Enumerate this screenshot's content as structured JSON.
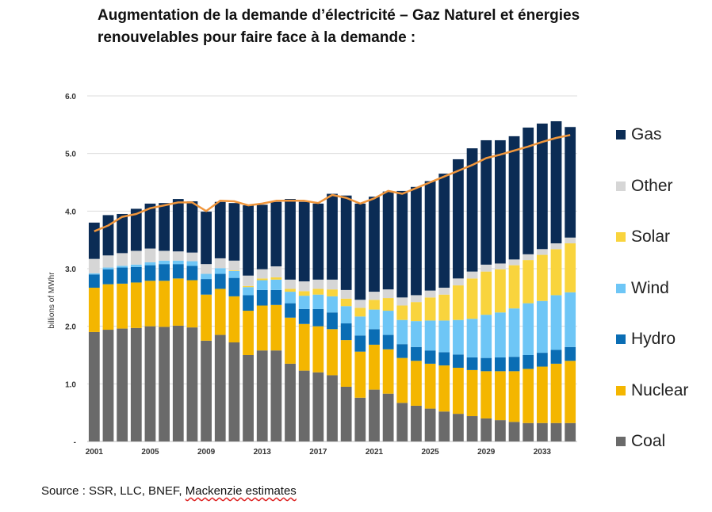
{
  "title_line1": "Augmentation de la demande d’électricité – Gaz Naturel et énergies",
  "title_line2": "renouvelables pour faire face à la demande :",
  "source_prefix": "Source : SSR, LLC, BNEF, ",
  "source_underlined": "Mackenzie estimates",
  "chart_data": {
    "type": "bar",
    "stacked": true,
    "ylabel": "billions of MWhr",
    "ylim": [
      0,
      6
    ],
    "yticks": [
      "-",
      "1.0",
      "2.0",
      "3.0",
      "4.0",
      "5.0",
      "6.0"
    ],
    "grid": true,
    "legend_position": "right",
    "categories": [
      2001,
      2002,
      2003,
      2004,
      2005,
      2006,
      2007,
      2008,
      2009,
      2010,
      2011,
      2012,
      2013,
      2014,
      2015,
      2016,
      2017,
      2018,
      2019,
      2020,
      2021,
      2022,
      2023,
      2024,
      2025,
      2026,
      2027,
      2028,
      2029,
      2030,
      2031,
      2032,
      2033,
      2034,
      2035
    ],
    "xtick_labels": [
      "2001",
      "2005",
      "2009",
      "2013",
      "2017",
      "2021",
      "2025",
      "2029",
      "2033"
    ],
    "series": [
      {
        "name": "Coal",
        "color": "#6a6a6a",
        "values": [
          1.9,
          1.94,
          1.96,
          1.97,
          2.0,
          1.99,
          2.01,
          1.98,
          1.75,
          1.85,
          1.72,
          1.5,
          1.58,
          1.58,
          1.35,
          1.23,
          1.2,
          1.15,
          0.95,
          0.76,
          0.9,
          0.83,
          0.67,
          0.62,
          0.57,
          0.52,
          0.48,
          0.44,
          0.4,
          0.37,
          0.34,
          0.32,
          0.32,
          0.32,
          0.32
        ]
      },
      {
        "name": "Nuclear",
        "color": "#f4b600",
        "values": [
          0.77,
          0.79,
          0.78,
          0.79,
          0.79,
          0.8,
          0.82,
          0.82,
          0.8,
          0.8,
          0.8,
          0.77,
          0.78,
          0.79,
          0.8,
          0.81,
          0.8,
          0.8,
          0.81,
          0.8,
          0.78,
          0.77,
          0.78,
          0.78,
          0.78,
          0.8,
          0.8,
          0.8,
          0.82,
          0.85,
          0.88,
          0.94,
          0.98,
          1.03,
          1.08
        ]
      },
      {
        "name": "Hydro",
        "color": "#0a6db4",
        "values": [
          0.23,
          0.26,
          0.28,
          0.27,
          0.27,
          0.29,
          0.25,
          0.25,
          0.27,
          0.26,
          0.32,
          0.27,
          0.27,
          0.26,
          0.25,
          0.26,
          0.3,
          0.29,
          0.29,
          0.28,
          0.27,
          0.25,
          0.24,
          0.24,
          0.23,
          0.23,
          0.23,
          0.22,
          0.23,
          0.24,
          0.25,
          0.24,
          0.24,
          0.24,
          0.24
        ]
      },
      {
        "name": "Wind",
        "color": "#6ec6f6",
        "values": [
          0.02,
          0.03,
          0.03,
          0.04,
          0.05,
          0.06,
          0.06,
          0.08,
          0.09,
          0.1,
          0.12,
          0.14,
          0.17,
          0.18,
          0.2,
          0.23,
          0.25,
          0.28,
          0.3,
          0.33,
          0.34,
          0.42,
          0.42,
          0.45,
          0.52,
          0.55,
          0.6,
          0.67,
          0.75,
          0.78,
          0.84,
          0.9,
          0.9,
          0.95,
          0.95
        ]
      },
      {
        "name": "Solar",
        "color": "#f9d43d",
        "values": [
          0.0,
          0.0,
          0.0,
          0.0,
          0.0,
          0.0,
          0.0,
          0.0,
          0.0,
          0.0,
          0.01,
          0.02,
          0.03,
          0.04,
          0.05,
          0.08,
          0.1,
          0.12,
          0.13,
          0.15,
          0.17,
          0.22,
          0.25,
          0.33,
          0.4,
          0.45,
          0.6,
          0.7,
          0.75,
          0.75,
          0.75,
          0.75,
          0.8,
          0.8,
          0.85
        ]
      },
      {
        "name": "Other",
        "color": "#d6d6d6",
        "values": [
          0.25,
          0.21,
          0.22,
          0.24,
          0.24,
          0.17,
          0.16,
          0.15,
          0.17,
          0.17,
          0.17,
          0.18,
          0.16,
          0.19,
          0.16,
          0.17,
          0.16,
          0.17,
          0.15,
          0.14,
          0.14,
          0.15,
          0.14,
          0.12,
          0.12,
          0.12,
          0.12,
          0.12,
          0.12,
          0.1,
          0.1,
          0.1,
          0.1,
          0.1,
          0.1
        ]
      },
      {
        "name": "Gas",
        "color": "#0b2c55",
        "values": [
          0.63,
          0.7,
          0.68,
          0.73,
          0.78,
          0.83,
          0.91,
          0.89,
          0.91,
          0.98,
          1.0,
          1.22,
          1.12,
          1.12,
          1.4,
          1.38,
          1.32,
          1.49,
          1.64,
          1.67,
          1.65,
          1.7,
          1.85,
          1.88,
          1.9,
          1.98,
          2.07,
          2.14,
          2.16,
          2.14,
          2.14,
          2.2,
          2.18,
          2.12,
          1.92
        ]
      }
    ],
    "demand_line": {
      "color": "#f0963c",
      "values": [
        3.65,
        3.75,
        3.9,
        3.95,
        4.05,
        4.1,
        4.15,
        4.15,
        4.0,
        4.18,
        4.17,
        4.1,
        4.13,
        4.18,
        4.18,
        4.18,
        4.14,
        4.28,
        4.23,
        4.13,
        4.22,
        4.35,
        4.3,
        4.4,
        4.5,
        4.6,
        4.7,
        4.8,
        4.92,
        4.98,
        5.05,
        5.12,
        5.2,
        5.27,
        5.32
      ]
    }
  }
}
